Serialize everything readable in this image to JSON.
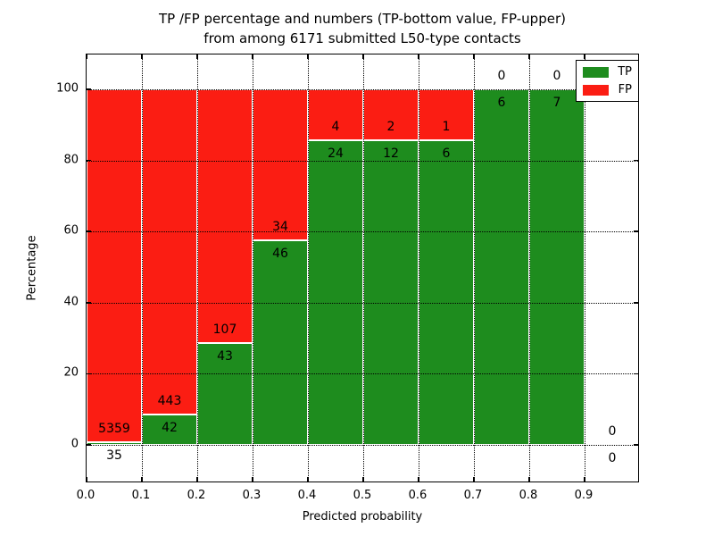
{
  "chart_data": {
    "type": "bar",
    "stacked": true,
    "title_lines": [
      "TP /FP percentage and numbers (TP-bottom value, FP-upper)",
      "from among 6171 submitted L50-type contacts"
    ],
    "xlabel": "Predicted probability",
    "ylabel": "Percentage",
    "x_tick_labels": [
      "0.0",
      "0.1",
      "0.2",
      "0.3",
      "0.4",
      "0.5",
      "0.6",
      "0.7",
      "0.8",
      "0.9"
    ],
    "y_tick_values": [
      0,
      20,
      40,
      60,
      80,
      100
    ],
    "xlim": [
      0.0,
      1.0
    ],
    "ylim_percent": [
      -11,
      110
    ],
    "grid": "dotted",
    "bar_edge_color": "#ffffff",
    "legend": {
      "position": "upper right",
      "entries": [
        {
          "name": "TP",
          "color": "#1e8c1e"
        },
        {
          "name": "FP",
          "color": "#fb1d13"
        }
      ]
    },
    "bins": [
      {
        "x0": 0.0,
        "x1": 0.1,
        "tp": 35,
        "fp": 5359
      },
      {
        "x0": 0.1,
        "x1": 0.2,
        "tp": 42,
        "fp": 443
      },
      {
        "x0": 0.2,
        "x1": 0.3,
        "tp": 43,
        "fp": 107
      },
      {
        "x0": 0.3,
        "x1": 0.4,
        "tp": 46,
        "fp": 34
      },
      {
        "x0": 0.4,
        "x1": 0.5,
        "tp": 24,
        "fp": 4
      },
      {
        "x0": 0.5,
        "x1": 0.6,
        "tp": 12,
        "fp": 2
      },
      {
        "x0": 0.6,
        "x1": 0.7,
        "tp": 6,
        "fp": 1
      },
      {
        "x0": 0.7,
        "x1": 0.8,
        "tp": 6,
        "fp": 0
      },
      {
        "x0": 0.8,
        "x1": 0.9,
        "tp": 7,
        "fp": 0
      },
      {
        "x0": 0.9,
        "x1": 1.0,
        "tp": 0,
        "fp": 0
      }
    ]
  }
}
